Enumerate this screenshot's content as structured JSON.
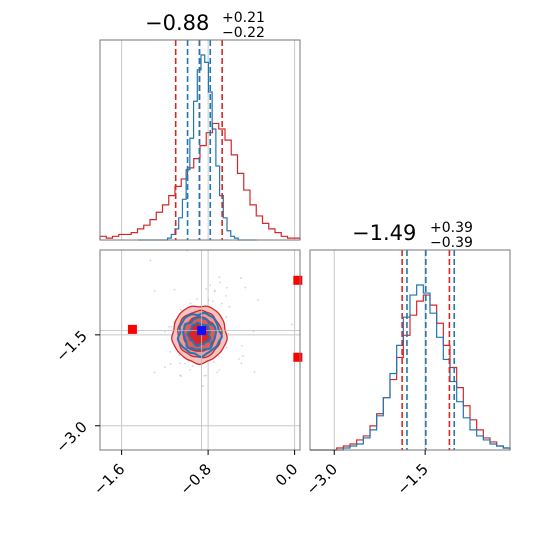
{
  "chart_data": {
    "type": "corner",
    "titles": [
      {
        "main": "−0.88",
        "plus": "+0.21",
        "minus": "−0.22"
      },
      {
        "main": "−1.49",
        "plus": "+0.39",
        "minus": "−0.39"
      }
    ],
    "param1": {
      "range": [
        -1.8,
        0.05
      ],
      "ticks": [
        -1.6,
        -0.8,
        0.0
      ],
      "tick_labels": [
        "−1.6",
        "−0.8",
        "0.0"
      ],
      "red_quantiles": [
        -1.1,
        -0.88,
        -0.67
      ],
      "blue_quantiles": [
        -0.99,
        -0.88,
        -0.78
      ],
      "red_hist": [
        0.02,
        0.01,
        0.02,
        0.03,
        0.03,
        0.04,
        0.06,
        0.08,
        0.11,
        0.15,
        0.19,
        0.24,
        0.29,
        0.33,
        0.39,
        0.44,
        0.51,
        0.58,
        0.63,
        0.6,
        0.54,
        0.46,
        0.36,
        0.27,
        0.19,
        0.13,
        0.09,
        0.06,
        0.04,
        0.02,
        0.01,
        0.01
      ],
      "blue_hist": [
        0,
        0,
        0,
        0,
        0,
        0,
        0,
        0,
        0.01,
        0.03,
        0.06,
        0.12,
        0.22,
        0.38,
        0.55,
        0.75,
        0.92,
        1.0,
        0.96,
        0.8,
        0.6,
        0.4,
        0.24,
        0.12,
        0.05,
        0.02,
        0.01,
        0,
        0,
        0,
        0,
        0
      ]
    },
    "param2": {
      "range": [
        -3.4,
        -0.1
      ],
      "ticks": [
        -3.0,
        -1.5
      ],
      "tick_labels": [
        "−3.0",
        "−1.5"
      ],
      "red_quantiles": [
        -1.88,
        -1.49,
        -1.1
      ],
      "blue_quantiles": [
        -1.8,
        -1.49,
        -1.02
      ],
      "red_hist": [
        0,
        0,
        0,
        0,
        0.01,
        0.02,
        0.03,
        0.05,
        0.07,
        0.12,
        0.18,
        0.26,
        0.35,
        0.46,
        0.57,
        0.67,
        0.74,
        0.77,
        0.72,
        0.63,
        0.52,
        0.41,
        0.31,
        0.22,
        0.15,
        0.1,
        0.06,
        0.04,
        0.02,
        0.01
      ],
      "blue_hist": [
        0,
        0,
        0,
        0,
        0,
        0.01,
        0.02,
        0.03,
        0.06,
        0.1,
        0.17,
        0.26,
        0.38,
        0.52,
        0.66,
        0.77,
        0.82,
        0.78,
        0.68,
        0.56,
        0.45,
        0.34,
        0.24,
        0.16,
        0.1,
        0.07,
        0.05,
        0.03,
        0.02,
        0.01
      ]
    },
    "joint": {
      "red_center": [
        -0.88,
        -1.49
      ],
      "red_sigma": [
        0.2,
        0.38
      ],
      "blue_center": [
        -0.88,
        -1.49
      ],
      "blue_sigma": [
        0.11,
        0.34
      ],
      "blue_marker": [
        -0.86,
        -1.43
      ],
      "red_markers": [
        [
          -1.5,
          -1.41
        ],
        [
          0.03,
          -0.6
        ],
        [
          0.03,
          -1.87
        ]
      ]
    }
  }
}
